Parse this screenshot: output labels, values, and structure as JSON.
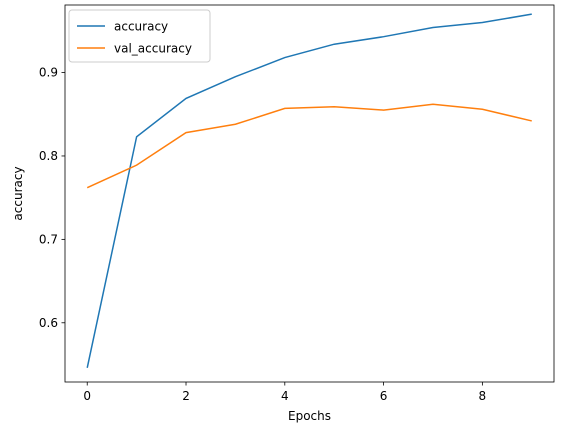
{
  "chart_data": {
    "type": "line",
    "title": "",
    "xlabel": "Epochs",
    "ylabel": "accuracy",
    "x": [
      0,
      1,
      2,
      3,
      4,
      5,
      6,
      7,
      8,
      9
    ],
    "xlim": [
      -0.45,
      9.45
    ],
    "ylim": [
      0.529,
      0.981
    ],
    "xticks": [
      0,
      2,
      4,
      6,
      8
    ],
    "yticks": [
      0.6,
      0.7,
      0.8,
      0.9
    ],
    "grid": false,
    "legend_position": "upper-left",
    "series": [
      {
        "name": "accuracy",
        "color": "#1f77b4",
        "values": [
          0.546,
          0.823,
          0.869,
          0.895,
          0.918,
          0.934,
          0.943,
          0.954,
          0.96,
          0.97
        ]
      },
      {
        "name": "val_accuracy",
        "color": "#ff7f0e",
        "values": [
          0.762,
          0.789,
          0.828,
          0.838,
          0.857,
          0.859,
          0.855,
          0.862,
          0.856,
          0.842
        ]
      }
    ]
  }
}
